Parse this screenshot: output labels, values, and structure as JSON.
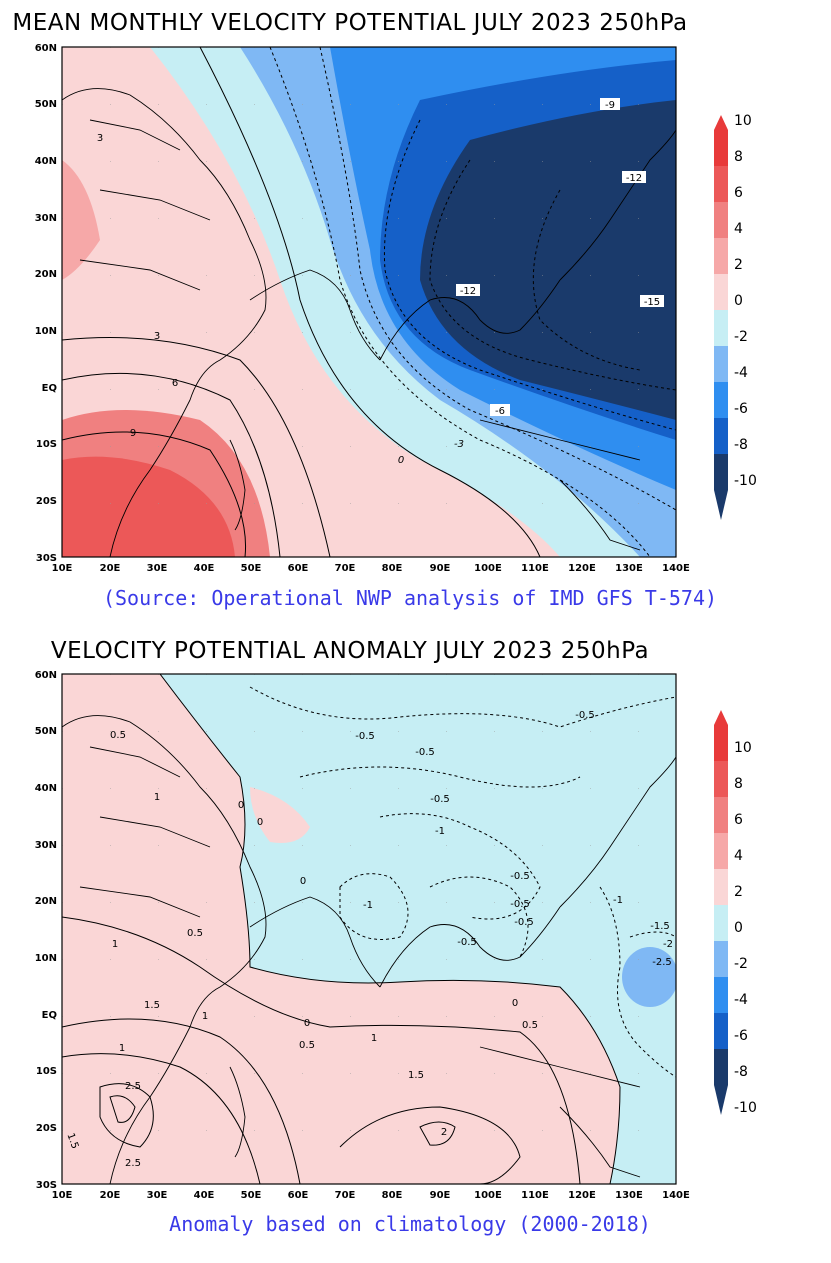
{
  "panels": [
    {
      "title": "MEAN MONTHLY VELOCITY POTENTIAL JULY 2023 250hPa",
      "caption": "(Source: Operational NWP analysis of IMD GFS T-574)",
      "contour_labels": [
        "3",
        "3",
        "6",
        "9",
        "0",
        "-3",
        "-6",
        "-9",
        "-12",
        "-12",
        "-15"
      ],
      "colorbar_ticks": [
        "10",
        "8",
        "6",
        "4",
        "2",
        "0",
        "-2",
        "-4",
        "-6",
        "-8",
        "-10"
      ]
    },
    {
      "title": "VELOCITY POTENTIAL ANOMALY JULY  2023 250hPa",
      "caption": "Anomaly based on climatology (2000-2018)",
      "contour_labels": [
        "0.5",
        "1",
        "0",
        "0",
        "0",
        "1",
        "0.5",
        "1",
        "1.5",
        "1",
        "2",
        "2.5",
        "2.5",
        "1.5",
        "0",
        "0.5",
        "1",
        "1.5",
        "2",
        "0",
        "0.5",
        "-0.5",
        "-0.5",
        "-0.5",
        "-0.5",
        "-1",
        "-1",
        "-0.5",
        "-0.5",
        "-0.5",
        "-0.5",
        "-1",
        "-1.5",
        "-2",
        "-2.5"
      ],
      "colorbar_ticks": [
        "10",
        "8",
        "6",
        "4",
        "2",
        "0",
        "-2",
        "-4",
        "-6",
        "-8",
        "-10"
      ]
    }
  ],
  "axes": {
    "lat_labels": [
      "60N",
      "50N",
      "40N",
      "30N",
      "20N",
      "10N",
      "EQ",
      "10S",
      "20S",
      "30S"
    ],
    "lon_labels": [
      "10E",
      "20E",
      "30E",
      "40E",
      "50E",
      "60E",
      "70E",
      "80E",
      "90E",
      "100E",
      "110E",
      "120E",
      "130E",
      "140E"
    ],
    "lat_range": [
      -30,
      60
    ],
    "lon_range": [
      10,
      140
    ]
  },
  "colors": {
    "scale": [
      "#1a3a6b",
      "#1560c8",
      "#2f8ef0",
      "#7fb8f4",
      "#c6eef4",
      "#fad6d6",
      "#f6a8a8",
      "#f08080",
      "#ec5858",
      "#e83a3a"
    ],
    "caption_text": "#3a3ae8"
  }
}
